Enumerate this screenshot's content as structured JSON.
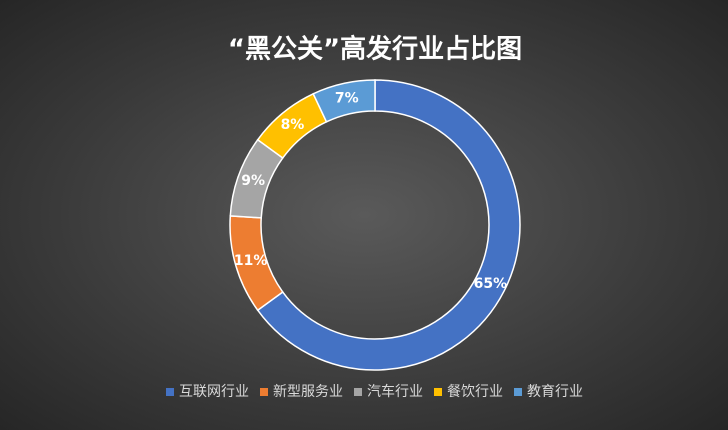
{
  "chart_data": {
    "type": "donut",
    "title": "“黑公关”高发行业占比图",
    "categories": [
      "互联网行业",
      "新型服务业",
      "汽车行业",
      "餐饮行业",
      "教育行业"
    ],
    "values": [
      65,
      11,
      9,
      8,
      7
    ],
    "value_labels": [
      "65%",
      "11%",
      "9%",
      "8%",
      "7%"
    ],
    "colors": [
      "#4472c4",
      "#ed7d31",
      "#a5a5a5",
      "#ffc000",
      "#5b9bd5"
    ],
    "legend": "bottom"
  }
}
